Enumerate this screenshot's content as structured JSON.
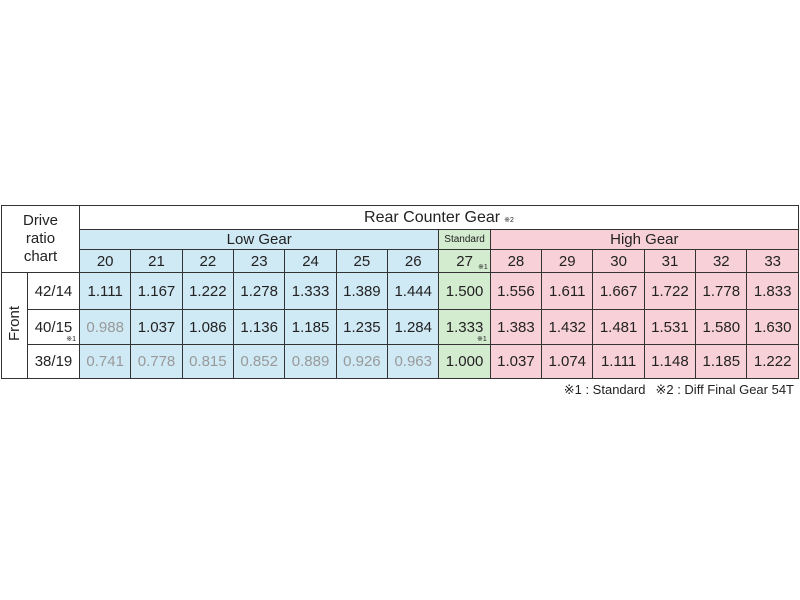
{
  "header": {
    "corner": "Drive ratio chart",
    "title": "Rear Counter Gear",
    "title_note": "※2",
    "side_label": "Front"
  },
  "groups": [
    {
      "label": "Low Gear",
      "span": 7,
      "color": "#cfe9f5"
    },
    {
      "label": "Standard",
      "span": 1,
      "color": "#d3ebcf"
    },
    {
      "label": "High Gear",
      "span": 6,
      "color": "#f8d1d8"
    }
  ],
  "rear_gears": [
    {
      "label": "20"
    },
    {
      "label": "21"
    },
    {
      "label": "22"
    },
    {
      "label": "23"
    },
    {
      "label": "24"
    },
    {
      "label": "25"
    },
    {
      "label": "26"
    },
    {
      "label": "27",
      "note": "※1"
    },
    {
      "label": "28"
    },
    {
      "label": "29"
    },
    {
      "label": "30"
    },
    {
      "label": "31"
    },
    {
      "label": "32"
    },
    {
      "label": "33"
    }
  ],
  "rows": [
    {
      "front": "42/14",
      "values": [
        "1.111",
        "1.167",
        "1.222",
        "1.278",
        "1.333",
        "1.389",
        "1.444",
        "1.500",
        "1.556",
        "1.611",
        "1.667",
        "1.722",
        "1.778",
        "1.833"
      ]
    },
    {
      "front": "40/15",
      "front_note": "※1",
      "value_note": {
        "index": 7,
        "text": "※1"
      },
      "values": [
        "0.988",
        "1.037",
        "1.086",
        "1.136",
        "1.185",
        "1.235",
        "1.284",
        "1.333",
        "1.383",
        "1.432",
        "1.481",
        "1.531",
        "1.580",
        "1.630"
      ]
    },
    {
      "front": "38/19",
      "values": [
        "0.741",
        "0.778",
        "0.815",
        "0.852",
        "0.889",
        "0.926",
        "0.963",
        "1.000",
        "1.037",
        "1.074",
        "1.111",
        "1.148",
        "1.185",
        "1.222"
      ]
    }
  ],
  "footnotes": [
    "※1 : Standard",
    "※2 : Diff Final Gear 54T"
  ]
}
